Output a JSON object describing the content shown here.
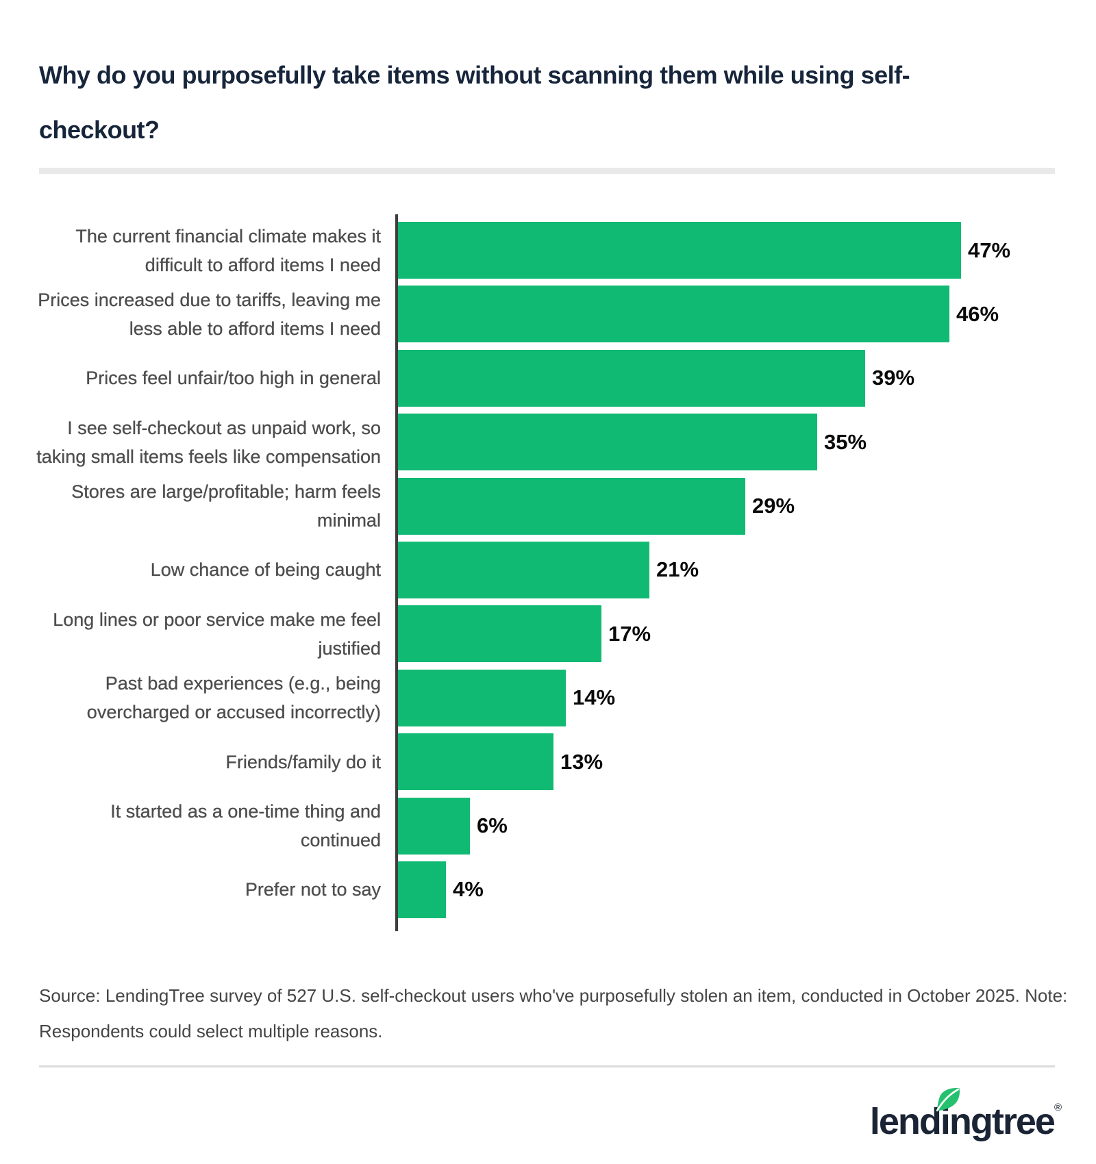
{
  "page": {
    "title_line1": "Why do you purposefully take items without scanning them while using self-",
    "title_line2": "checkout?",
    "source_line1": "Source: LendingTree survey of 527 U.S. self-checkout users who've purposefully stolen an item, conducted in October 2025. Note:",
    "source_line2": "Respondents could select multiple reasons.",
    "brand": {
      "logo_text": "lendingtree",
      "registered_mark": "®",
      "logo_color": "#1A2435",
      "leaf_color": "#25C16F"
    }
  },
  "chart_data": {
    "type": "bar",
    "orientation": "horizontal",
    "title": "Why do you purposefully take items without scanning them while using self-checkout?",
    "categories": [
      "The current financial climate makes it difficult to afford items I need",
      "Prices increased due to tariffs, leaving me less able to afford items I need",
      "Prices feel unfair/too high in general",
      "I see self-checkout as unpaid work, so taking small items feels like compensation",
      "Stores are large/profitable; harm feels minimal",
      "Low chance of being caught",
      "Long lines or poor service make me feel justified",
      "Past bad experiences (e.g., being overcharged or accused incorrectly)",
      "Friends/family do it",
      "It started as a one-time thing and continued",
      "Prefer not to say"
    ],
    "categories_lines": [
      [
        "The current financial climate makes it",
        "difficult to afford items I need"
      ],
      [
        "Prices increased due to tariffs, leaving me",
        "less able to afford items I need"
      ],
      [
        "Prices feel unfair/too high in general"
      ],
      [
        "I see self-checkout as unpaid work, so",
        "taking small items feels like compensation"
      ],
      [
        "Stores are large/profitable; harm feels",
        "minimal"
      ],
      [
        "Low chance of being caught"
      ],
      [
        "Long lines or poor service make me feel",
        "justified"
      ],
      [
        "Past bad experiences (e.g., being",
        "overcharged or accused incorrectly)"
      ],
      [
        "Friends/family do it"
      ],
      [
        "It started as a one-time thing and",
        "continued"
      ],
      [
        "Prefer not to say"
      ]
    ],
    "values": [
      47,
      46,
      39,
      35,
      29,
      21,
      17,
      14,
      13,
      6,
      4
    ],
    "value_suffix": "%",
    "xlim": [
      0,
      50
    ],
    "bar_color": "#11BA73",
    "label_color": "#4D4D4D",
    "value_label_color": "#0A0A0A",
    "axis_color": "#3E3E3E",
    "grid": "off",
    "legend": "none"
  }
}
